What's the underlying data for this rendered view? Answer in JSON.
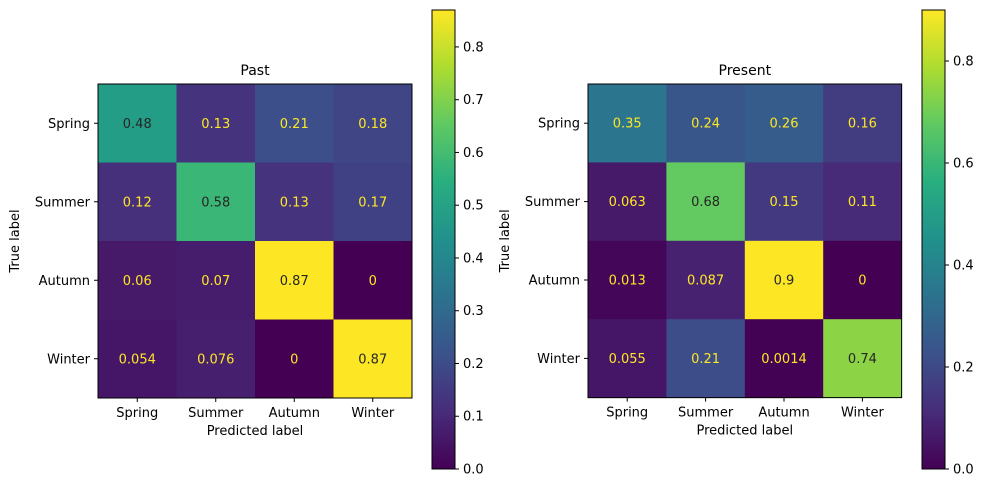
{
  "chart_data": [
    {
      "type": "heatmap",
      "title": "Past",
      "xlabel": "Predicted label",
      "ylabel": "True label",
      "categories": [
        "Spring",
        "Summer",
        "Autumn",
        "Winter"
      ],
      "values": [
        [
          0.48,
          0.13,
          0.21,
          0.18
        ],
        [
          0.12,
          0.58,
          0.13,
          0.17
        ],
        [
          0.06,
          0.07,
          0.87,
          0
        ],
        [
          0.054,
          0.076,
          0,
          0.87
        ]
      ],
      "labels": [
        [
          "0.48",
          "0.13",
          "0.21",
          "0.18"
        ],
        [
          "0.12",
          "0.58",
          "0.13",
          "0.17"
        ],
        [
          "0.06",
          "0.07",
          "0.87",
          "0"
        ],
        [
          "0.054",
          "0.076",
          "0",
          "0.87"
        ]
      ],
      "colorbar": {
        "range": [
          0,
          0.87
        ],
        "ticks": [
          "0.0",
          "0.1",
          "0.2",
          "0.3",
          "0.4",
          "0.5",
          "0.6",
          "0.7",
          "0.8"
        ],
        "colormap": "viridis"
      },
      "grid": false
    },
    {
      "type": "heatmap",
      "title": "Present",
      "xlabel": "Predicted label",
      "ylabel": "True label",
      "categories": [
        "Spring",
        "Summer",
        "Autumn",
        "Winter"
      ],
      "values": [
        [
          0.35,
          0.24,
          0.26,
          0.16
        ],
        [
          0.063,
          0.68,
          0.15,
          0.11
        ],
        [
          0.013,
          0.087,
          0.9,
          0
        ],
        [
          0.055,
          0.21,
          0.0014,
          0.74
        ]
      ],
      "labels": [
        [
          "0.35",
          "0.24",
          "0.26",
          "0.16"
        ],
        [
          "0.063",
          "0.68",
          "0.15",
          "0.11"
        ],
        [
          "0.013",
          "0.087",
          "0.9",
          "0"
        ],
        [
          "0.055",
          "0.21",
          "0.0014",
          "0.74"
        ]
      ],
      "colorbar": {
        "range": [
          0,
          0.9
        ],
        "ticks": [
          "0.0",
          "0.2",
          "0.4",
          "0.6",
          "0.8"
        ],
        "colormap": "viridis"
      },
      "grid": false
    }
  ],
  "colors": {
    "text_dark": "#262626",
    "text_light": "#fde725",
    "axis": "#000000",
    "background": "#ffffff"
  }
}
